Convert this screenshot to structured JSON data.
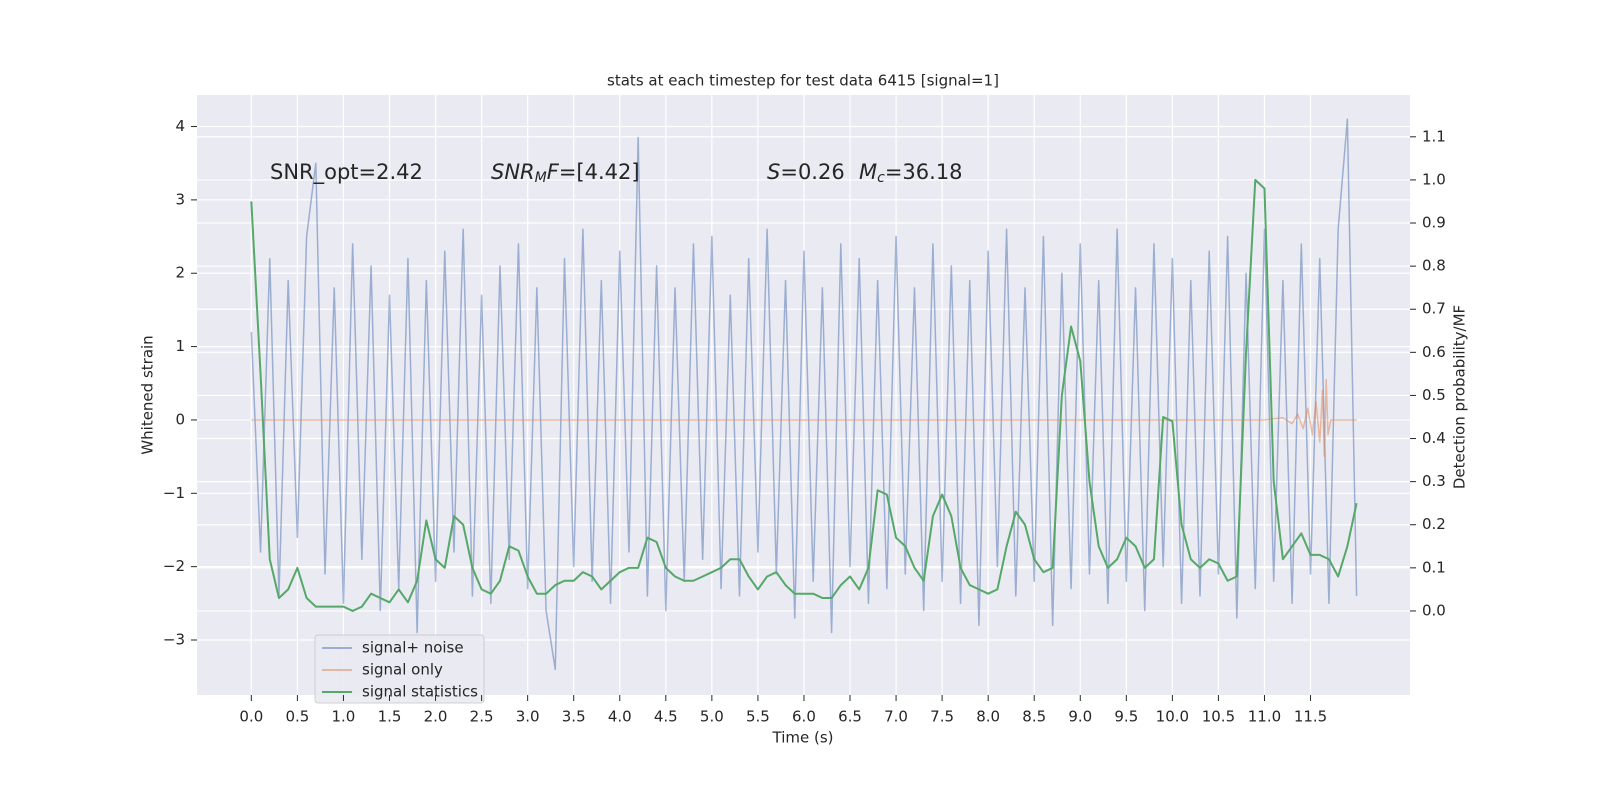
{
  "chart_data": {
    "type": "line",
    "title": "stats at each timestep for test data 6415 [signal=1]",
    "xlabel": "Time (s)",
    "ylabel": "Whitened strain",
    "y2label": "Detection probability/MF",
    "annotations": [
      [
        {
          "t": "SNR_opt=2.42"
        }
      ],
      [
        {
          "t": "SNR",
          "italic": true
        },
        {
          "t": "M",
          "italic": true,
          "sub": true
        },
        {
          "t": "F",
          "italic": true
        },
        {
          "t": "=[4.42]"
        }
      ],
      [
        {
          "t": "S",
          "italic": true
        },
        {
          "t": "=0.26"
        }
      ],
      [
        {
          "t": "M",
          "italic": true
        },
        {
          "t": "c",
          "italic": true,
          "sub": true
        },
        {
          "t": "=36.18"
        }
      ]
    ],
    "x": [
      0,
      0.1,
      0.2,
      0.3,
      0.4,
      0.5,
      0.6,
      0.7,
      0.8,
      0.9,
      1.0,
      1.1,
      1.2,
      1.3,
      1.4,
      1.5,
      1.6,
      1.7,
      1.8,
      1.9,
      2.0,
      2.1,
      2.2,
      2.3,
      2.4,
      2.5,
      2.6,
      2.7,
      2.8,
      2.9,
      3.0,
      3.1,
      3.2,
      3.3,
      3.4,
      3.5,
      3.6,
      3.7,
      3.8,
      3.9,
      4.0,
      4.1,
      4.2,
      4.3,
      4.4,
      4.5,
      4.6,
      4.7,
      4.8,
      4.9,
      5.0,
      5.1,
      5.2,
      5.3,
      5.4,
      5.5,
      5.6,
      5.7,
      5.8,
      5.9,
      6.0,
      6.1,
      6.2,
      6.3,
      6.4,
      6.5,
      6.6,
      6.7,
      6.8,
      6.9,
      7.0,
      7.1,
      7.2,
      7.3,
      7.4,
      7.5,
      7.6,
      7.7,
      7.8,
      7.9,
      8.0,
      8.1,
      8.2,
      8.3,
      8.4,
      8.5,
      8.6,
      8.7,
      8.8,
      8.9,
      9.0,
      9.1,
      9.2,
      9.3,
      9.4,
      9.5,
      9.6,
      9.7,
      9.8,
      9.9,
      10.0,
      10.1,
      10.2,
      10.3,
      10.4,
      10.5,
      10.6,
      10.7,
      10.8,
      10.9,
      11.0,
      11.1,
      11.2,
      11.3,
      11.4,
      11.5,
      11.6,
      11.7,
      11.8,
      11.9,
      12.0
    ],
    "series": [
      {
        "name": "signal+ noise",
        "color": "#4c72b0",
        "opacity": 0.5,
        "values": [
          1.2,
          -1.8,
          2.2,
          -2.4,
          1.9,
          -1.6,
          2.5,
          3.5,
          -2.1,
          1.8,
          -2.5,
          2.4,
          -1.9,
          2.1,
          -2.6,
          1.7,
          -2.3,
          2.2,
          -2.9,
          1.9,
          -2.2,
          2.3,
          -1.8,
          2.6,
          -2.4,
          1.7,
          -2.5,
          2.1,
          -1.9,
          2.4,
          -2.3,
          1.8,
          -2.6,
          -3.4,
          2.2,
          -2.0,
          2.6,
          -2.2,
          1.9,
          -2.5,
          2.3,
          -1.8,
          3.85,
          -2.4,
          2.1,
          -2.6,
          1.8,
          -2.2,
          2.4,
          -1.9,
          2.5,
          -2.3,
          1.7,
          -2.4,
          2.2,
          -1.8,
          2.6,
          -2.1,
          1.9,
          -2.7,
          2.3,
          -2.2,
          1.8,
          -2.9,
          2.4,
          -2.0,
          2.2,
          -2.5,
          1.9,
          -2.3,
          2.5,
          -2.1,
          1.8,
          -2.6,
          2.4,
          -2.2,
          2.1,
          -2.5,
          1.9,
          -2.8,
          2.3,
          -2.0,
          2.6,
          -2.4,
          1.8,
          -2.2,
          2.5,
          -2.8,
          2.0,
          -2.3,
          2.4,
          -2.1,
          1.9,
          -2.5,
          2.6,
          -2.2,
          1.8,
          -2.6,
          2.4,
          -2.0,
          2.2,
          -2.5,
          1.9,
          -2.4,
          2.3,
          -2.1,
          2.5,
          -2.7,
          2.0,
          -2.3,
          2.6,
          -2.2,
          1.9,
          -2.5,
          2.4,
          -2.1,
          2.2,
          -2.5,
          2.6,
          4.1,
          -2.4
        ]
      },
      {
        "name": "signal only",
        "color": "#dd8452",
        "opacity": 0.5,
        "x": [
          0,
          11.0,
          11.2,
          11.3,
          11.36,
          11.42,
          11.47,
          11.52,
          11.56,
          11.6,
          11.63,
          11.65,
          11.67,
          11.69,
          11.72,
          12.0
        ],
        "values": [
          0,
          0,
          0.03,
          -0.05,
          0.08,
          -0.12,
          0.16,
          -0.2,
          0.25,
          -0.3,
          0.4,
          -0.5,
          0.55,
          -0.2,
          0,
          0
        ]
      },
      {
        "name": "signal statistics",
        "color": "#55a868",
        "opacity": 1,
        "axis": "y2",
        "values": [
          0.95,
          0.55,
          0.12,
          0.03,
          0.05,
          0.1,
          0.03,
          0.01,
          0.01,
          0.01,
          0.01,
          0.0,
          0.01,
          0.04,
          0.03,
          0.02,
          0.05,
          0.02,
          0.07,
          0.21,
          0.12,
          0.1,
          0.22,
          0.2,
          0.1,
          0.05,
          0.04,
          0.07,
          0.15,
          0.14,
          0.08,
          0.04,
          0.04,
          0.06,
          0.07,
          0.07,
          0.09,
          0.08,
          0.05,
          0.07,
          0.09,
          0.1,
          0.1,
          0.17,
          0.16,
          0.1,
          0.08,
          0.07,
          0.07,
          0.08,
          0.09,
          0.1,
          0.12,
          0.12,
          0.08,
          0.05,
          0.08,
          0.09,
          0.06,
          0.04,
          0.04,
          0.04,
          0.03,
          0.03,
          0.06,
          0.08,
          0.05,
          0.1,
          0.28,
          0.27,
          0.17,
          0.15,
          0.1,
          0.07,
          0.22,
          0.27,
          0.22,
          0.1,
          0.06,
          0.05,
          0.04,
          0.05,
          0.15,
          0.23,
          0.2,
          0.12,
          0.09,
          0.1,
          0.5,
          0.66,
          0.58,
          0.3,
          0.15,
          0.1,
          0.12,
          0.17,
          0.15,
          0.1,
          0.12,
          0.45,
          0.44,
          0.2,
          0.12,
          0.1,
          0.12,
          0.11,
          0.07,
          0.08,
          0.6,
          1.0,
          0.98,
          0.3,
          0.12,
          0.15,
          0.18,
          0.13,
          0.13,
          0.12,
          0.08,
          0.15,
          0.25
        ]
      }
    ],
    "xlim": [
      -0.59,
      12.58
    ],
    "xticks": [
      {
        "value": 0,
        "label": "0.0"
      },
      0.5,
      {
        "value": 1,
        "label": "1.0"
      },
      1.5,
      {
        "value": 2,
        "label": "2.0"
      },
      2.5,
      {
        "value": 3,
        "label": "3.0"
      },
      3.5,
      {
        "value": 4,
        "label": "4.0"
      },
      4.5,
      {
        "value": 5,
        "label": "5.0"
      },
      5.5,
      {
        "value": 6,
        "label": "6.0"
      },
      6.5,
      {
        "value": 7,
        "label": "7.0"
      },
      7.5,
      {
        "value": 8,
        "label": "8.0"
      },
      8.5,
      {
        "value": 9,
        "label": "9.0"
      },
      9.5,
      {
        "value": 10,
        "label": "10.0"
      },
      10.5,
      {
        "value": 11,
        "label": "11.0"
      },
      11.5
    ],
    "ylim": [
      -3.75,
      4.43
    ],
    "yticks": [
      {
        "value": -3,
        "label": "−3"
      },
      {
        "value": -2,
        "label": "−2"
      },
      {
        "value": -1,
        "label": "−1"
      },
      0,
      1,
      2,
      3,
      4
    ],
    "y2lim": [
      -0.195,
      1.197
    ],
    "y2ticks": [
      {
        "value": 0,
        "label": "0.0"
      },
      0.1,
      0.2,
      0.3,
      0.4,
      0.5,
      0.6,
      0.7,
      0.8,
      0.9,
      {
        "value": 1,
        "label": "1.0"
      },
      1.1
    ],
    "grid": true
  }
}
